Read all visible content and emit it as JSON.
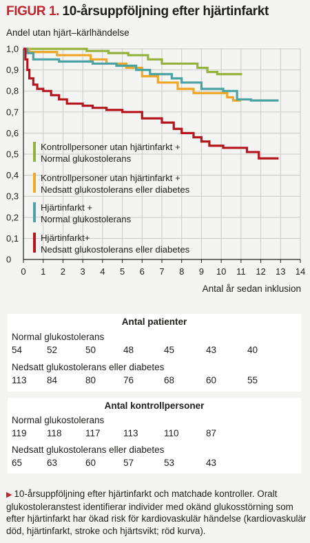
{
  "figure": {
    "label": "FIGUR 1.",
    "title": "10-årsuppföljning efter hjärtinfarkt"
  },
  "chart_data": {
    "type": "line",
    "title": "10-årsuppföljning efter hjärtinfarkt",
    "ylabel": "Andel utan hjärt–kärlhändelse",
    "xlabel": "Antal år sedan inklusion",
    "xlim": [
      0,
      14
    ],
    "ylim": [
      0,
      1.0
    ],
    "x_ticks": [
      "0",
      "1",
      "2",
      "3",
      "4",
      "5",
      "6",
      "7",
      "8",
      "9",
      "10",
      "11",
      "12",
      "13",
      "14"
    ],
    "y_ticks": [
      "0",
      "0,1",
      "0,2",
      "0,3",
      "0,4",
      "0,5",
      "0,6",
      "0,7",
      "0,8",
      "0,9",
      "1,0"
    ],
    "grid": true,
    "legend_position": "lower-left",
    "series": [
      {
        "name": "Kontrollpersoner utan hjärtinfarkt + Normal glukostolerans",
        "color": "#93b23a",
        "x": [
          0,
          3.2,
          4.3,
          5.3,
          6.3,
          7.0,
          8.8,
          9.3,
          9.8,
          11.0
        ],
        "y": [
          1.0,
          0.99,
          0.98,
          0.97,
          0.95,
          0.93,
          0.91,
          0.89,
          0.88,
          0.875
        ]
      },
      {
        "name": "Kontrollpersoner utan hjärtinfarkt + Nedsatt glukostolerans eller diabetes",
        "color": "#f0a626",
        "x": [
          0,
          0.3,
          1.7,
          3.4,
          4.2,
          5.2,
          6.0,
          6.8,
          7.8,
          8.6,
          9.5,
          10.3,
          10.6,
          11.0
        ],
        "y": [
          1.0,
          0.985,
          0.97,
          0.95,
          0.93,
          0.91,
          0.87,
          0.84,
          0.81,
          0.79,
          0.79,
          0.77,
          0.755,
          0.755
        ]
      },
      {
        "name": "Hjärtinfarkt + Normal glukostolerans",
        "color": "#4aa3a2",
        "x": [
          0,
          0.2,
          0.5,
          1.8,
          2.5,
          3.5,
          4.7,
          5.7,
          6.4,
          7.5,
          8.0,
          9.0,
          10.1,
          10.8,
          11.5,
          12.9
        ],
        "y": [
          1.0,
          0.98,
          0.95,
          0.94,
          0.94,
          0.93,
          0.92,
          0.9,
          0.88,
          0.86,
          0.84,
          0.81,
          0.8,
          0.76,
          0.755,
          0.755
        ]
      },
      {
        "name": "Hjärtinfarkt+ Nedsatt glukostolerans eller diabetes",
        "color": "#b5161d",
        "x": [
          0,
          0.1,
          0.2,
          0.3,
          0.5,
          0.7,
          1.0,
          1.4,
          1.8,
          2.2,
          3.0,
          3.5,
          4.2,
          5.0,
          6.0,
          7.0,
          7.6,
          8.0,
          8.6,
          9.0,
          9.4,
          10.1,
          11.0,
          11.3,
          11.9,
          12.9
        ],
        "y": [
          1.0,
          0.95,
          0.9,
          0.86,
          0.83,
          0.81,
          0.8,
          0.78,
          0.76,
          0.74,
          0.73,
          0.72,
          0.71,
          0.7,
          0.67,
          0.65,
          0.62,
          0.6,
          0.58,
          0.56,
          0.54,
          0.53,
          0.53,
          0.51,
          0.48,
          0.48
        ]
      }
    ]
  },
  "legend": [
    {
      "line1": "Kontrollpersoner utan hjärtinfarkt +",
      "line2": "Normal glukostolerans",
      "color": "#93b23a"
    },
    {
      "line1": "Kontrollpersoner utan hjärtinfarkt +",
      "line2": "Nedsatt glukostolerans eller diabetes",
      "color": "#f0a626"
    },
    {
      "line1": "Hjärtinfarkt +",
      "line2": "Normal glukostolerans",
      "color": "#4aa3a2"
    },
    {
      "line1": "Hjärtinfarkt+",
      "line2": "Nedsatt glukostolerans eller diabetes",
      "color": "#b5161d"
    }
  ],
  "patients_table": {
    "heading": "Antal patienter",
    "groups": [
      {
        "label": "Normal glukostolerans",
        "values": [
          "54",
          "52",
          "50",
          "48",
          "45",
          "43",
          "40"
        ]
      },
      {
        "label": "Nedsatt glukostolerans eller diabetes",
        "values": [
          "113",
          "84",
          "80",
          "76",
          "68",
          "60",
          "55"
        ]
      }
    ]
  },
  "controls_table": {
    "heading": "Antal kontrollpersoner",
    "groups": [
      {
        "label": "Normal glukostolerans",
        "values": [
          "119",
          "118",
          "117",
          "113",
          "110",
          "87"
        ]
      },
      {
        "label": "Nedsatt glukostolerans eller diabetes",
        "values": [
          "65",
          "63",
          "60",
          "57",
          "53",
          "43"
        ]
      }
    ]
  },
  "caption": {
    "marker": "▶",
    "text": "10-årsuppföljning efter hjärtinfarkt och matchade kontroller. Oralt glukostoleranstest identifierar individer med okänd glukosstörning som efter hjärtinfarkt har ökad risk för kardiovaskulär händelse (kardiovaskulär död, hjärtinfarkt, stroke och hjärtsvikt; röd kurva)."
  }
}
